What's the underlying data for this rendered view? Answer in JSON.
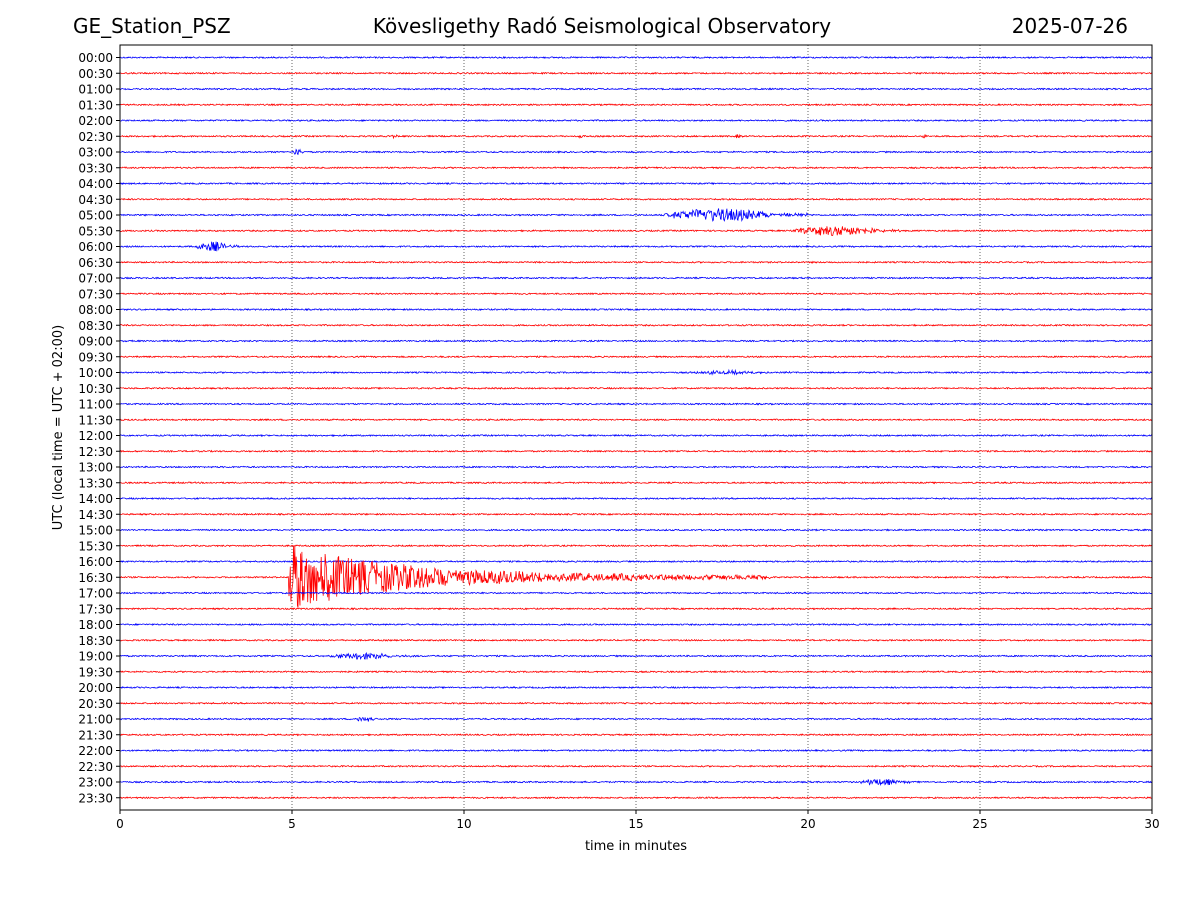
{
  "header": {
    "station": "GE_Station_PSZ",
    "observatory": "Kövesligethy Radó Seismological Observatory",
    "date": "2025-07-26"
  },
  "chart_data": {
    "type": "line",
    "title": "Kövesligethy Radó Seismological Observatory",
    "xlabel": "time in minutes",
    "ylabel": "UTC (local time = UTC + 02:00)",
    "xlim": [
      0,
      30
    ],
    "xticks": [
      "0",
      "5",
      "10",
      "15",
      "20",
      "25",
      "30"
    ],
    "grid": "vertical dotted at each x tick",
    "trace_colors": [
      "#0000ff",
      "#ff0000"
    ],
    "rows": [
      {
        "label": "00:00"
      },
      {
        "label": "00:30"
      },
      {
        "label": "01:00"
      },
      {
        "label": "01:30"
      },
      {
        "label": "02:00"
      },
      {
        "label": "02:30",
        "events": [
          {
            "t": 7.9,
            "amp": 0.3,
            "dur": 0.2
          },
          {
            "t": 13.3,
            "amp": 0.3,
            "dur": 0.2
          },
          {
            "t": 17.9,
            "amp": 0.3,
            "dur": 0.2
          },
          {
            "t": 23.3,
            "amp": 0.3,
            "dur": 0.2
          }
        ]
      },
      {
        "label": "03:00",
        "events": [
          {
            "t": 5.0,
            "amp": 0.4,
            "dur": 0.4
          }
        ]
      },
      {
        "label": "03:30"
      },
      {
        "label": "04:00"
      },
      {
        "label": "04:30"
      },
      {
        "label": "05:00",
        "events": [
          {
            "t": 15.8,
            "amp": 0.8,
            "dur": 4.2
          }
        ]
      },
      {
        "label": "05:30",
        "events": [
          {
            "t": 19.5,
            "amp": 0.6,
            "dur": 3.5
          }
        ]
      },
      {
        "label": "06:00",
        "events": [
          {
            "t": 2.2,
            "amp": 0.6,
            "dur": 1.2
          }
        ]
      },
      {
        "label": "06:30"
      },
      {
        "label": "07:00"
      },
      {
        "label": "07:30"
      },
      {
        "label": "08:00"
      },
      {
        "label": "08:30"
      },
      {
        "label": "09:00"
      },
      {
        "label": "09:30"
      },
      {
        "label": "10:00",
        "events": [
          {
            "t": 16.5,
            "amp": 0.2,
            "dur": 3.0
          }
        ]
      },
      {
        "label": "10:30"
      },
      {
        "label": "11:00"
      },
      {
        "label": "11:30"
      },
      {
        "label": "12:00"
      },
      {
        "label": "12:30"
      },
      {
        "label": "13:00"
      },
      {
        "label": "13:30"
      },
      {
        "label": "14:00"
      },
      {
        "label": "14:30"
      },
      {
        "label": "15:00"
      },
      {
        "label": "15:30"
      },
      {
        "label": "16:00"
      },
      {
        "label": "16:30",
        "events": [
          {
            "t": 4.9,
            "amp": 3.6,
            "dur": 14.0
          }
        ]
      },
      {
        "label": "17:00"
      },
      {
        "label": "17:30"
      },
      {
        "label": "18:00"
      },
      {
        "label": "18:30"
      },
      {
        "label": "19:00",
        "events": [
          {
            "t": 6.1,
            "amp": 0.4,
            "dur": 2.5
          }
        ]
      },
      {
        "label": "19:30"
      },
      {
        "label": "20:00"
      },
      {
        "label": "20:30"
      },
      {
        "label": "21:00",
        "events": [
          {
            "t": 6.8,
            "amp": 0.3,
            "dur": 0.8
          }
        ]
      },
      {
        "label": "21:30"
      },
      {
        "label": "22:00"
      },
      {
        "label": "22:30"
      },
      {
        "label": "23:00",
        "events": [
          {
            "t": 21.5,
            "amp": 0.4,
            "dur": 1.5
          }
        ]
      },
      {
        "label": "23:30"
      }
    ]
  }
}
